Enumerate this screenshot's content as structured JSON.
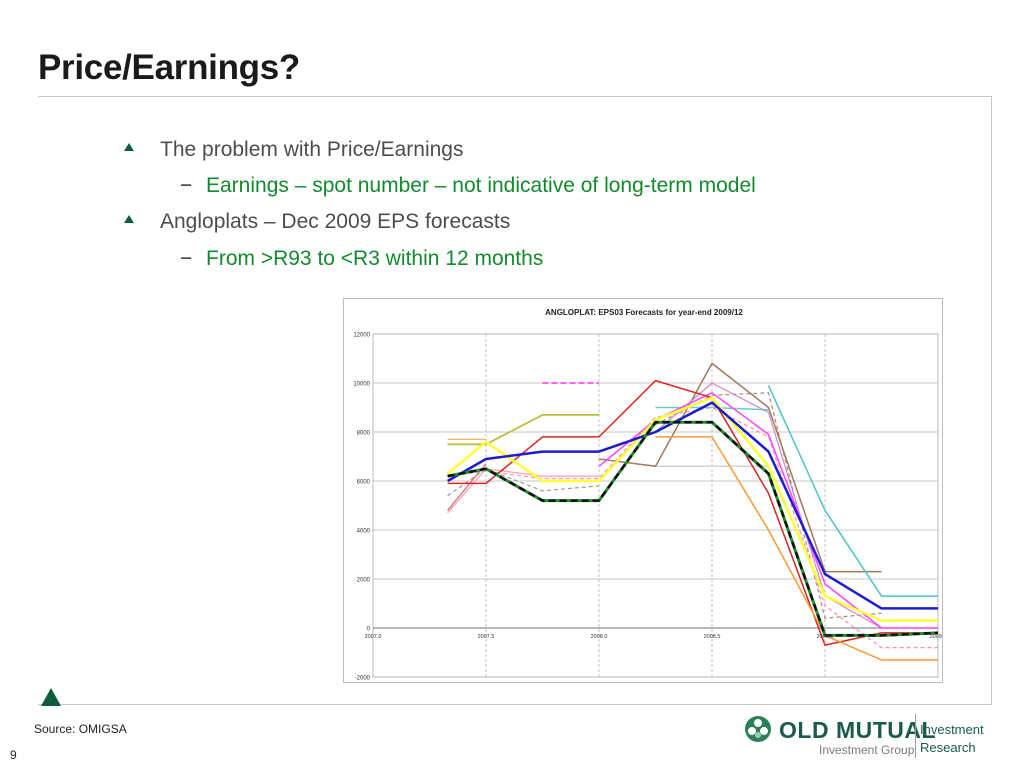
{
  "slide": {
    "title": "Price/Earnings?",
    "bullets": [
      {
        "text": "The problem with Price/Earnings",
        "sub": "Earnings – spot number – not indicative of long-term model"
      },
      {
        "text": "Angloplats – Dec 2009 EPS forecasts",
        "sub": "From >R93 to <R3 within 12 months"
      }
    ],
    "sub_dash": "−",
    "source": "Source: OMIGSA",
    "page_number": "9",
    "logo": {
      "name": "OLD MUTUAL",
      "group": "Investment Group",
      "line1": "Investment",
      "line2": "Research",
      "icon": "old-mutual-emblem-icon"
    },
    "colors": {
      "accent": "#0d5c3d",
      "bullet_text": "#4d4d4d",
      "sub_text": "#138a2d"
    }
  },
  "chart_data": {
    "type": "line",
    "title": "ANGLOPLAT: EPS03 Forecasts for year-end 2009/12",
    "xlim": [
      2007.0,
      2009.5
    ],
    "ylim": [
      -2000,
      12000
    ],
    "x_ticks": [
      "2007.0",
      "2007.5",
      "2008.0",
      "2008.5",
      "2009.0",
      "2009.5"
    ],
    "y_ticks": [
      "12000",
      "10000",
      "8000",
      "6000",
      "4000",
      "2000",
      "0",
      "-2000"
    ],
    "grid": true,
    "series": [
      {
        "color": "#ff33ff",
        "dash": "6,3",
        "width": 1.5,
        "points": [
          [
            2007.75,
            10000
          ],
          [
            2008.0,
            10000
          ]
        ]
      },
      {
        "color": "#bdbd3d",
        "dash": "",
        "width": 1.8,
        "points": [
          [
            2007.33,
            7500
          ],
          [
            2007.5,
            7500
          ],
          [
            2007.75,
            8700
          ],
          [
            2008.0,
            8700
          ]
        ]
      },
      {
        "color": "#f0a860",
        "dash": "",
        "width": 1.2,
        "points": [
          [
            2007.33,
            7700
          ],
          [
            2007.5,
            7700
          ]
        ]
      },
      {
        "color": "#d3d3d3",
        "dash": "",
        "width": 1.5,
        "points": [
          [
            2008.25,
            6600
          ],
          [
            2008.5,
            6600
          ],
          [
            2008.75,
            6600
          ]
        ]
      },
      {
        "color": "#b08a6b",
        "dash": "4,3",
        "width": 1.2,
        "points": [
          [
            2008.25,
            8300
          ],
          [
            2008.5,
            9500
          ],
          [
            2008.75,
            9600
          ],
          [
            2009.0,
            400
          ],
          [
            2009.25,
            600
          ]
        ]
      },
      {
        "color": "#a0785a",
        "dash": "",
        "width": 1.5,
        "points": [
          [
            2008.0,
            6900
          ],
          [
            2008.25,
            6600
          ],
          [
            2008.5,
            10800
          ],
          [
            2008.75,
            9000
          ],
          [
            2009.0,
            2300
          ],
          [
            2009.25,
            2300
          ]
        ]
      },
      {
        "color": "#66cccc",
        "dash": "",
        "width": 1.5,
        "points": [
          [
            2008.25,
            9000
          ],
          [
            2008.5,
            9000
          ],
          [
            2008.75,
            8900
          ]
        ]
      },
      {
        "color": "#4fc3c3",
        "dash": "",
        "width": 1.5,
        "points": [
          [
            2008.75,
            9900
          ],
          [
            2009.0,
            4800
          ],
          [
            2009.25,
            1300
          ],
          [
            2009.5,
            1300
          ]
        ]
      },
      {
        "color": "#ff8fa3",
        "dash": "4,3",
        "width": 1.2,
        "points": [
          [
            2007.33,
            6200
          ],
          [
            2007.5,
            6400
          ],
          [
            2007.75,
            6100
          ],
          [
            2008.0,
            6100
          ],
          [
            2008.25,
            8600
          ],
          [
            2008.5,
            9000
          ],
          [
            2008.75,
            7800
          ],
          [
            2009.0,
            900
          ],
          [
            2009.25,
            -800
          ],
          [
            2009.5,
            -800
          ]
        ]
      },
      {
        "color": "#f4a0b0",
        "dash": "",
        "width": 1.2,
        "points": [
          [
            2007.33,
            4700
          ],
          [
            2007.5,
            6500
          ],
          [
            2007.75,
            6200
          ],
          [
            2008.0,
            6200
          ]
        ]
      },
      {
        "color": "#e06070",
        "dash": "",
        "width": 1.2,
        "points": [
          [
            2007.33,
            4800
          ],
          [
            2007.5,
            6700
          ]
        ]
      },
      {
        "color": "#999999",
        "dash": "4,3",
        "width": 1.2,
        "points": [
          [
            2007.33,
            5400
          ],
          [
            2007.5,
            6500
          ],
          [
            2007.75,
            5600
          ],
          [
            2008.0,
            5800
          ]
        ]
      },
      {
        "color": "#cc88cc",
        "dash": "",
        "width": 1.2,
        "points": [
          [
            2008.25,
            8000
          ],
          [
            2008.5,
            10000
          ],
          [
            2008.75,
            8800
          ],
          [
            2009.0,
            1300
          ],
          [
            2009.25,
            0
          ],
          [
            2009.5,
            0
          ]
        ]
      },
      {
        "color": "#ff44ff",
        "dash": "",
        "width": 1.5,
        "points": [
          [
            2008.0,
            6600
          ],
          [
            2008.25,
            8500
          ],
          [
            2008.5,
            9600
          ],
          [
            2008.75,
            7900
          ],
          [
            2009.0,
            1800
          ],
          [
            2009.25,
            0
          ],
          [
            2009.5,
            0
          ]
        ]
      },
      {
        "color": "#dd2222",
        "dash": "",
        "width": 1.5,
        "points": [
          [
            2007.33,
            5900
          ],
          [
            2007.5,
            5900
          ],
          [
            2007.75,
            7800
          ],
          [
            2008.0,
            7800
          ],
          [
            2008.25,
            10100
          ],
          [
            2008.5,
            9400
          ],
          [
            2008.75,
            5500
          ],
          [
            2009.0,
            -700
          ],
          [
            2009.25,
            -200
          ],
          [
            2009.5,
            -200
          ]
        ]
      },
      {
        "color": "#ff9933",
        "dash": "",
        "width": 1.5,
        "points": [
          [
            2008.25,
            7800
          ],
          [
            2008.5,
            7800
          ],
          [
            2008.75,
            4000
          ],
          [
            2009.0,
            -300
          ],
          [
            2009.25,
            -1300
          ],
          [
            2009.5,
            -1300
          ]
        ]
      },
      {
        "color": "#ffff33",
        "dash": "",
        "width": 2.5,
        "points": [
          [
            2007.33,
            6300
          ],
          [
            2007.5,
            7600
          ],
          [
            2007.75,
            6000
          ],
          [
            2008.0,
            6000
          ],
          [
            2008.25,
            8500
          ],
          [
            2008.5,
            9400
          ],
          [
            2008.75,
            6600
          ],
          [
            2009.0,
            1300
          ],
          [
            2009.25,
            300
          ],
          [
            2009.5,
            300
          ]
        ]
      },
      {
        "color": "#1c1ccc",
        "dash": "",
        "width": 2.5,
        "points": [
          [
            2007.33,
            6000
          ],
          [
            2007.5,
            6900
          ],
          [
            2007.75,
            7200
          ],
          [
            2008.0,
            7200
          ],
          [
            2008.25,
            8000
          ],
          [
            2008.5,
            9200
          ],
          [
            2008.75,
            7200
          ],
          [
            2009.0,
            2200
          ],
          [
            2009.25,
            800
          ],
          [
            2009.5,
            800
          ]
        ]
      },
      {
        "color": "#1f8f2e",
        "dash": "",
        "width": 3,
        "points": [
          [
            2007.33,
            6200
          ],
          [
            2007.5,
            6500
          ],
          [
            2007.75,
            5200
          ],
          [
            2008.0,
            5200
          ],
          [
            2008.25,
            8400
          ],
          [
            2008.5,
            8400
          ],
          [
            2008.75,
            6300
          ],
          [
            2009.0,
            -300
          ],
          [
            2009.25,
            -300
          ],
          [
            2009.5,
            -200
          ]
        ]
      },
      {
        "color": "#111111",
        "dash": "7,4",
        "width": 2.5,
        "points": [
          [
            2007.33,
            6200
          ],
          [
            2007.5,
            6500
          ],
          [
            2007.75,
            5200
          ],
          [
            2008.0,
            5200
          ],
          [
            2008.25,
            8400
          ],
          [
            2008.5,
            8400
          ],
          [
            2008.75,
            6300
          ],
          [
            2009.0,
            -300
          ],
          [
            2009.25,
            -300
          ],
          [
            2009.5,
            -200
          ]
        ]
      }
    ]
  }
}
